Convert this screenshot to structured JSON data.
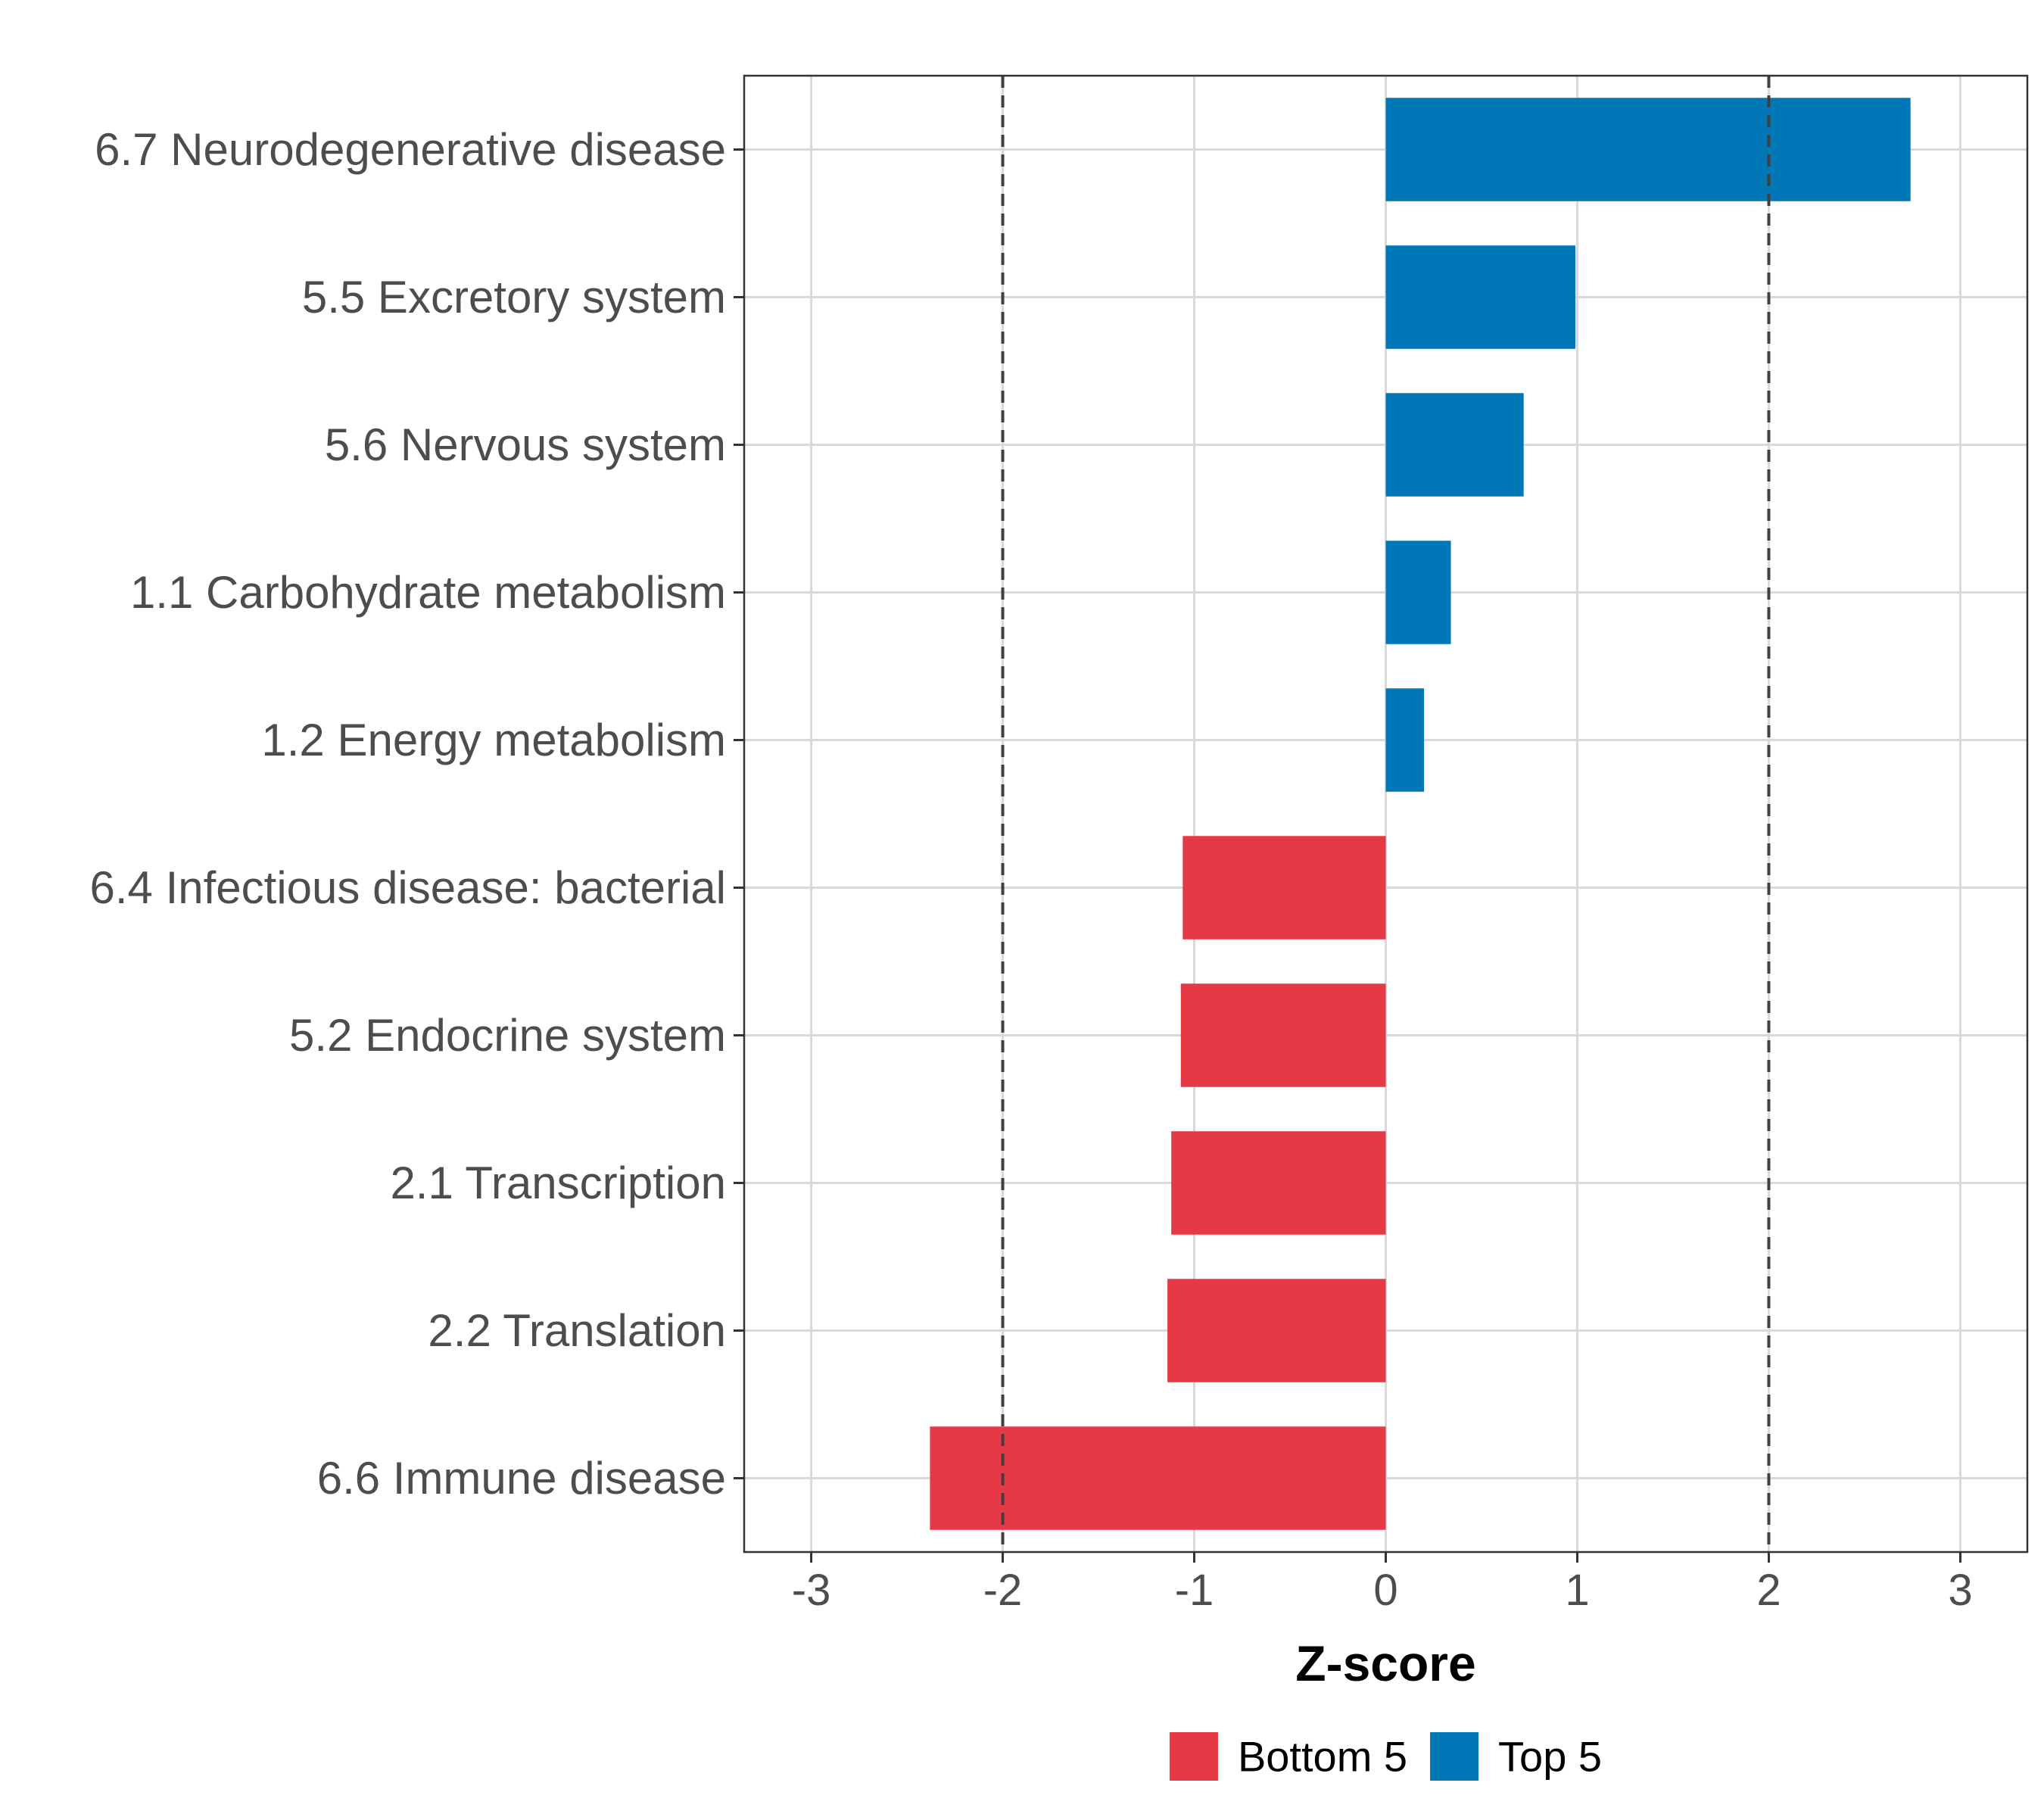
{
  "chart_data": {
    "type": "bar",
    "orientation": "horizontal",
    "categories": [
      "6.7 Neurodegenerative disease",
      "5.5 Excretory system",
      "5.6 Nervous system",
      "1.1 Carbohydrate metabolism",
      "1.2 Energy metabolism",
      "6.4 Infectious disease: bacterial",
      "5.2 Endocrine system",
      "2.1 Transcription",
      "2.2 Translation",
      "6.6 Immune disease"
    ],
    "values": [
      2.74,
      0.99,
      0.72,
      0.34,
      0.2,
      -1.06,
      -1.07,
      -1.12,
      -1.14,
      -2.38
    ],
    "groups": [
      "Top 5",
      "Top 5",
      "Top 5",
      "Top 5",
      "Top 5",
      "Bottom 5",
      "Bottom 5",
      "Bottom 5",
      "Bottom 5",
      "Bottom 5"
    ],
    "xlabel": "Z-score",
    "ylabel": "",
    "xlim": [
      -3.35,
      3.35
    ],
    "xticks": [
      -3,
      -2,
      -1,
      0,
      1,
      2,
      3
    ],
    "xtick_labels": [
      "-3",
      "-2",
      "-1",
      "0",
      "1",
      "2",
      "3"
    ],
    "reference_lines": [
      -2,
      2
    ],
    "grid": true,
    "legend": {
      "position": "bottom",
      "entries": [
        {
          "name": "Bottom 5",
          "color": "#E63946"
        },
        {
          "name": "Top 5",
          "color": "#0077B6"
        }
      ]
    },
    "colors": {
      "Top 5": "#0077B6",
      "Bottom 5": "#E63946"
    }
  }
}
